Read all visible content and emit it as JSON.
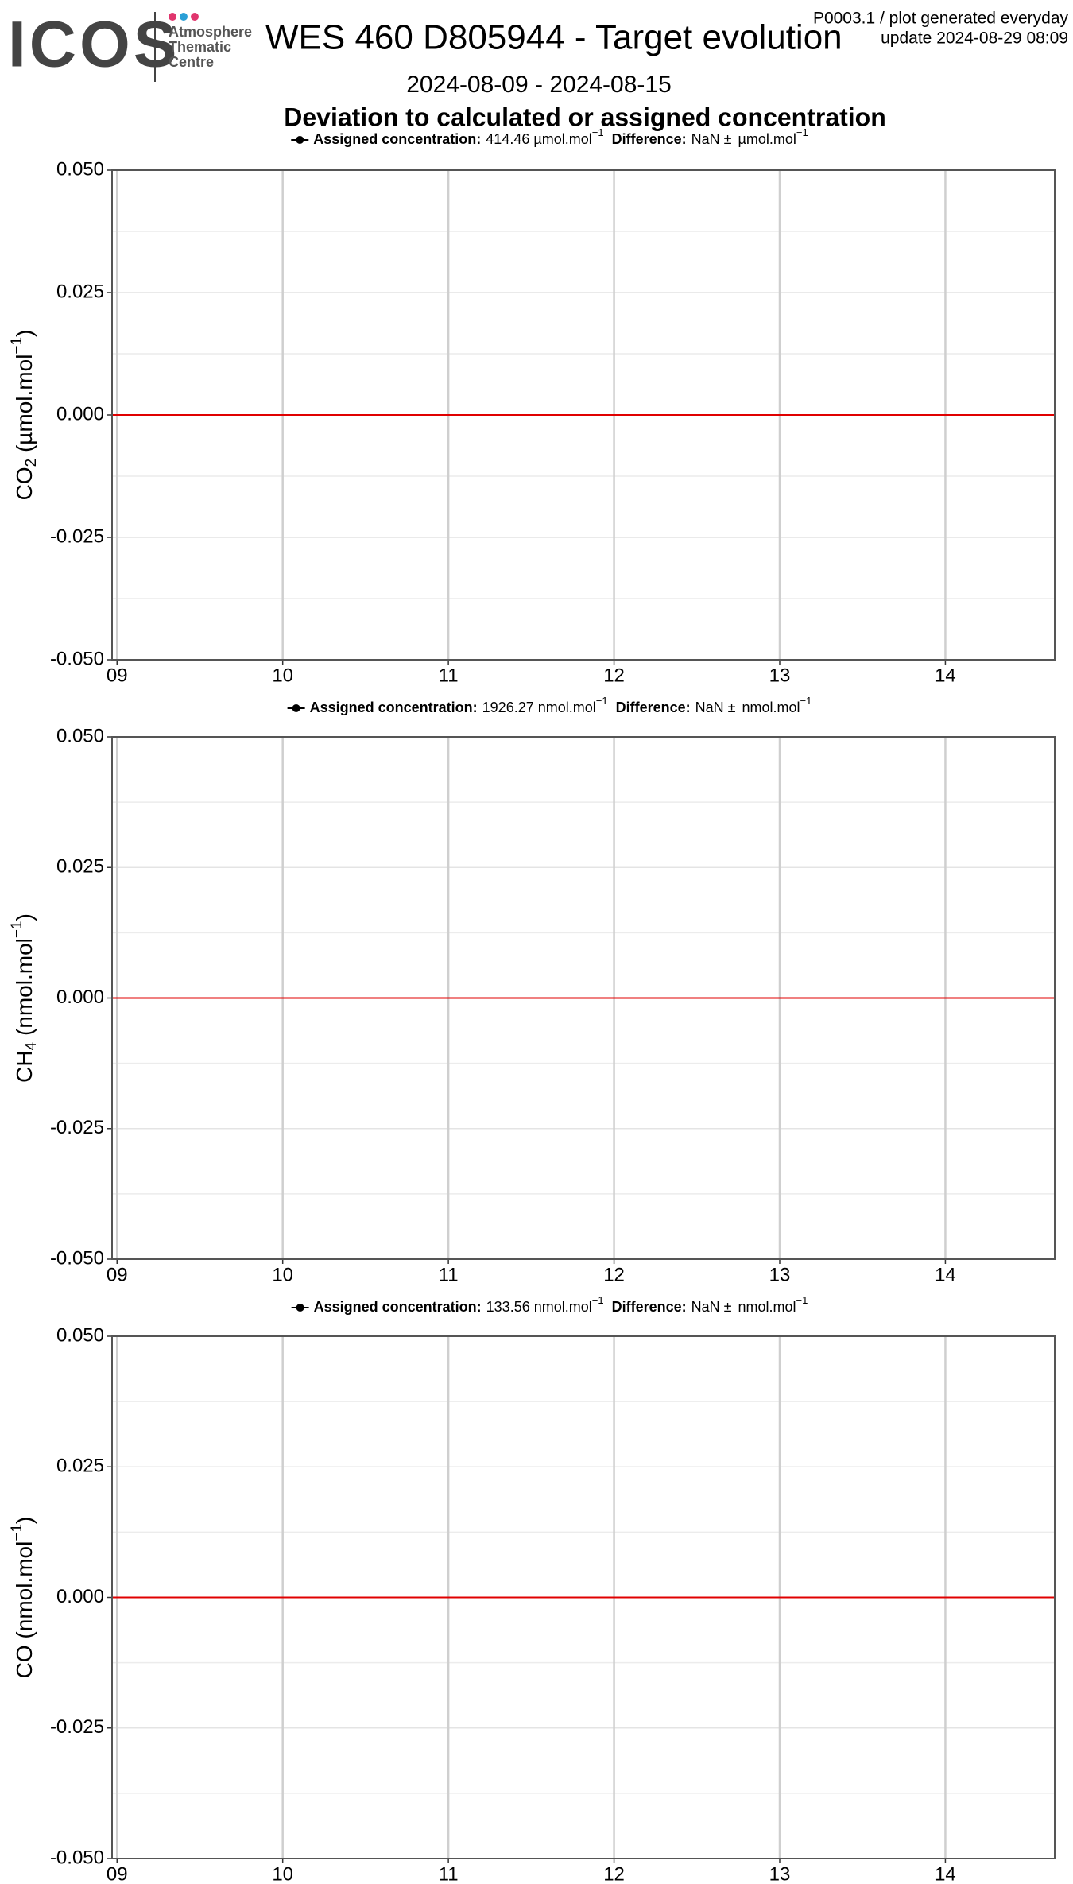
{
  "header": {
    "logo": "ICOS",
    "logo_lines": [
      "Atmosphere",
      "Thematic",
      "Centre"
    ],
    "title": "WES 460 D805944 - Target evolution",
    "note_1": "P0003.1 / plot generated everyday",
    "note_2": "update  2024-08-29 08:09",
    "period": "2024-08-09 - 2024-08-15",
    "heading": "Deviation to calculated or assigned concentration"
  },
  "chart_data": [
    {
      "type": "line",
      "ylabel": {
        "species": "CO",
        "sub": "2",
        "unit": " (µmol.mol",
        "sup": "−1",
        "close": ")"
      },
      "legend": {
        "label": "Assigned concentration:",
        "value": 414.46,
        "unit": "µmol.mol",
        "exponent": "−1",
        "diff_label": "Difference:",
        "diff_value": "NaN ±",
        "diff_unit": "µmol.mol",
        "diff_exponent": "−1"
      },
      "xlim": [
        8.97,
        14.66
      ],
      "xticks": [
        {
          "value": 9,
          "label": "09"
        },
        10,
        11,
        12,
        13,
        14
      ],
      "ylim": [
        -0.05,
        0.05
      ],
      "yticks": [
        {
          "value": -0.05,
          "label": "-0.050"
        },
        {
          "value": -0.025,
          "label": "-0.025"
        },
        {
          "value": 0,
          "label": "0.000"
        },
        {
          "value": 0.025,
          "label": "0.025"
        },
        {
          "value": 0.05,
          "label": "0.050"
        }
      ],
      "reference_line": {
        "value": 0,
        "color": "#e00000"
      },
      "grid": true
    },
    {
      "type": "line",
      "ylabel": {
        "species": "CH",
        "sub": "4",
        "unit": " (nmol.mol",
        "sup": "−1",
        "close": ")"
      },
      "legend": {
        "label": "Assigned concentration:",
        "value": 1926.27,
        "unit": "nmol.mol",
        "exponent": "−1",
        "diff_label": "Difference:",
        "diff_value": "NaN ±",
        "diff_unit": "nmol.mol",
        "diff_exponent": "−1"
      },
      "xlim": [
        8.97,
        14.66
      ],
      "xticks": [
        {
          "value": 9,
          "label": "09"
        },
        10,
        11,
        12,
        13,
        14
      ],
      "ylim": [
        -0.05,
        0.05
      ],
      "yticks": [
        {
          "value": -0.05,
          "label": "-0.050"
        },
        {
          "value": -0.025,
          "label": "-0.025"
        },
        {
          "value": 0,
          "label": "0.000"
        },
        {
          "value": 0.025,
          "label": "0.025"
        },
        {
          "value": 0.05,
          "label": "0.050"
        }
      ],
      "reference_line": {
        "value": 0,
        "color": "#e00000"
      },
      "grid": true
    },
    {
      "type": "line",
      "ylabel": {
        "species": "CO",
        "unit": " (nmol.mol",
        "sup": "−1",
        "close": ")"
      },
      "legend": {
        "label": "Assigned concentration:",
        "value": 133.56,
        "unit": "nmol.mol",
        "exponent": "−1",
        "diff_label": "Difference:",
        "diff_value": "NaN ±",
        "diff_unit": "nmol.mol",
        "diff_exponent": "−1"
      },
      "xlim": [
        8.97,
        14.66
      ],
      "xticks": [
        {
          "value": 9,
          "label": "09"
        },
        10,
        11,
        12,
        13,
        14
      ],
      "ylim": [
        -0.05,
        0.05
      ],
      "yticks": [
        {
          "value": -0.05,
          "label": "-0.050"
        },
        {
          "value": -0.025,
          "label": "-0.025"
        },
        {
          "value": 0,
          "label": "0.000"
        },
        {
          "value": 0.025,
          "label": "0.025"
        },
        {
          "value": 0.05,
          "label": "0.050"
        }
      ],
      "reference_line": {
        "value": 0,
        "color": "#e00000"
      },
      "grid": true
    }
  ]
}
